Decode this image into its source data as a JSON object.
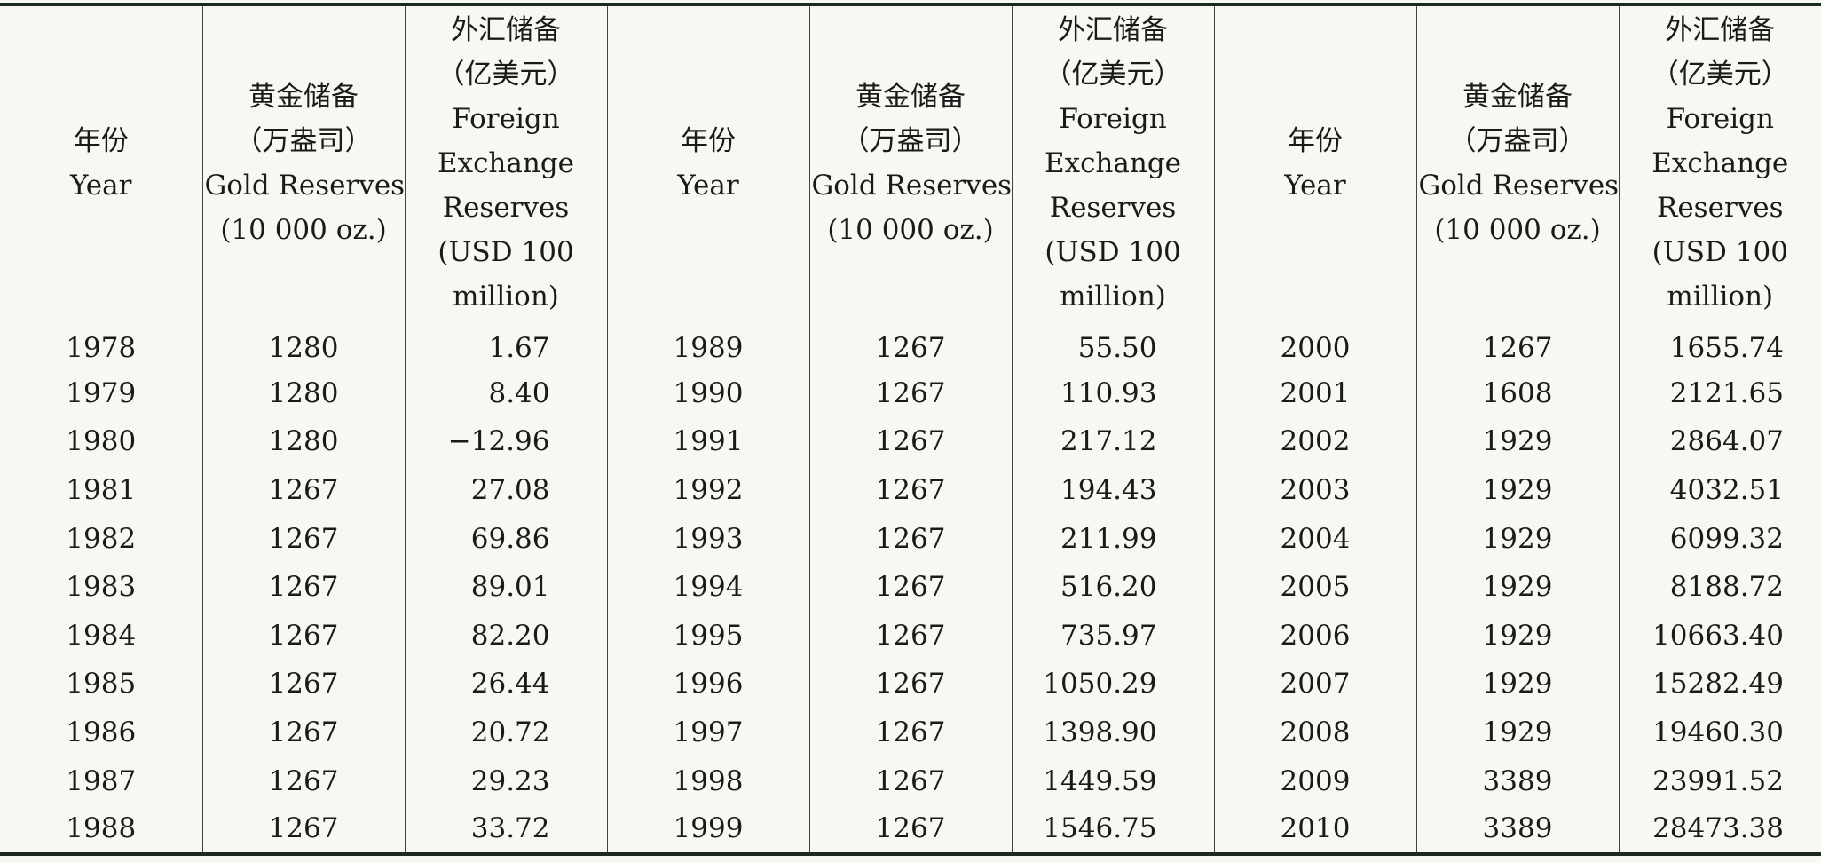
{
  "header": {
    "year_zh": "年份",
    "year_en": "Year",
    "gold_zh": "黄金储备",
    "gold_unit_zh": "（万盎司）",
    "gold_en": "Gold Reserves",
    "gold_unit_en": "(10 000 oz.)",
    "fx_zh": "外汇储备",
    "fx_unit_zh": "（亿美元）",
    "fx_en1": "Foreign",
    "fx_en2": "Exchange",
    "fx_en3": "Reserves",
    "fx_unit_en1": "(USD 100",
    "fx_unit_en2": "million)"
  },
  "rows": [
    [
      "1978",
      "1280",
      "1.67",
      "1989",
      "1267",
      "55.50",
      "2000",
      "1267",
      "1655.74"
    ],
    [
      "1979",
      "1280",
      "8.40",
      "1990",
      "1267",
      "110.93",
      "2001",
      "1608",
      "2121.65"
    ],
    [
      "1980",
      "1280",
      "−12.96",
      "1991",
      "1267",
      "217.12",
      "2002",
      "1929",
      "2864.07"
    ],
    [
      "1981",
      "1267",
      "27.08",
      "1992",
      "1267",
      "194.43",
      "2003",
      "1929",
      "4032.51"
    ],
    [
      "1982",
      "1267",
      "69.86",
      "1993",
      "1267",
      "211.99",
      "2004",
      "1929",
      "6099.32"
    ],
    [
      "1983",
      "1267",
      "89.01",
      "1994",
      "1267",
      "516.20",
      "2005",
      "1929",
      "8188.72"
    ],
    [
      "1984",
      "1267",
      "82.20",
      "1995",
      "1267",
      "735.97",
      "2006",
      "1929",
      "10663.40"
    ],
    [
      "1985",
      "1267",
      "26.44",
      "1996",
      "1267",
      "1050.29",
      "2007",
      "1929",
      "15282.49"
    ],
    [
      "1986",
      "1267",
      "20.72",
      "1997",
      "1267",
      "1398.90",
      "2008",
      "1929",
      "19460.30"
    ],
    [
      "1987",
      "1267",
      "29.23",
      "1998",
      "1267",
      "1449.59",
      "2009",
      "3389",
      "23991.52"
    ],
    [
      "1988",
      "1267",
      "33.72",
      "1999",
      "1267",
      "1546.75",
      "2010",
      "3389",
      "28473.38"
    ]
  ]
}
